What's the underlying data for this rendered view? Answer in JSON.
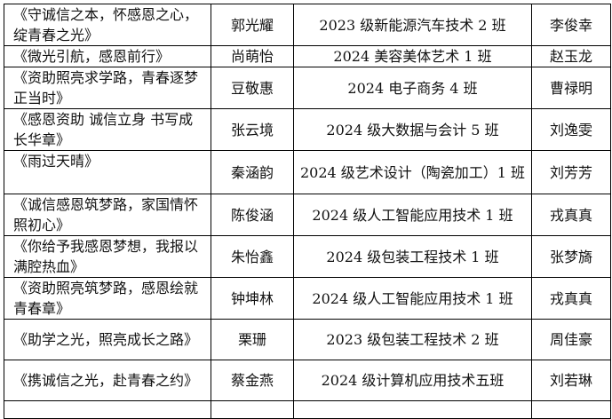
{
  "rows": [
    {
      "title": "《守诚信之本，怀感恩之心，绽青春之光》",
      "student": "郭光耀",
      "class": "2023 级新能源汽车技术 2 班",
      "teacher": "李俊幸"
    },
    {
      "title": "《微光引航，感恩前行》",
      "student": "尚萌怡",
      "class": "2024 美容美体艺术 1 班",
      "teacher": "赵玉龙"
    },
    {
      "title": "《资助照亮求学路，青春逐梦正当时》",
      "student": "豆敬惠",
      "class": "2024 电子商务 4 班",
      "teacher": "曹禄明"
    },
    {
      "title": "《感恩资助  诚信立身  书写成长华章》",
      "student": "张云境",
      "class": "2024 级大数据与会计 5 班",
      "teacher": "刘逸雯"
    },
    {
      "title": "《雨过天晴》",
      "student": "秦涵韵",
      "class": "2024 级艺术设计（陶瓷加工）1 班",
      "teacher": "刘芳芳"
    },
    {
      "title": "《诚信感恩筑梦路，家国情怀照初心》",
      "student": "陈俊涵",
      "class": "2024 级人工智能应用技术 1 班",
      "teacher": "戎真真"
    },
    {
      "title": "《你给予我感恩梦想，我报以满腔热血》",
      "student": "朱怡鑫",
      "class": "2024 级包装工程技术 1 班",
      "teacher": "张梦旖"
    },
    {
      "title": "《资助照亮筑梦路，感恩绘就青春章》",
      "student": "钟坤林",
      "class": "2024 级人工智能应用技术 1 班",
      "teacher": "戎真真"
    },
    {
      "title": "《助学之光，照亮成长之路》",
      "student": "栗珊",
      "class": "2023 级包装工程技术 2 班",
      "teacher": "周佳豪"
    },
    {
      "title": "《携诚信之光，赴青春之约》",
      "student": "蔡金燕",
      "class": "2024 级计算机应用技术五班",
      "teacher": "刘若琳"
    }
  ]
}
